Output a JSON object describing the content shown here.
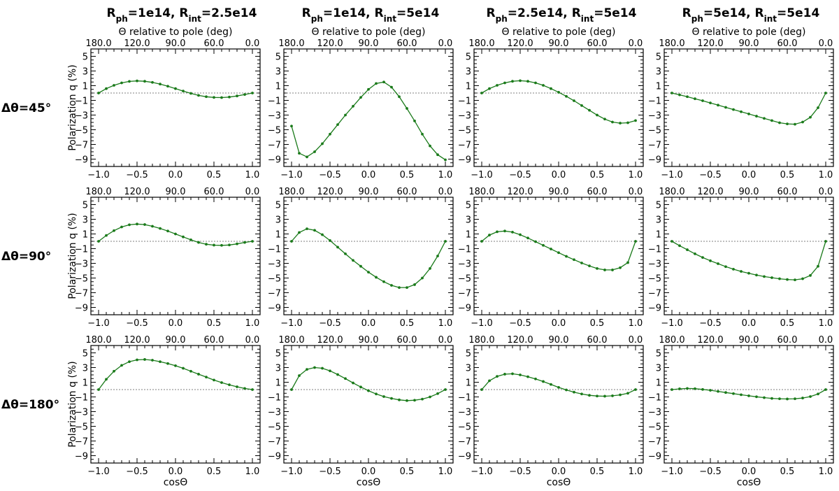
{
  "figure": {
    "column_titles": [
      {
        "a_main": "R",
        "a_sub": "ph",
        "a_val": "=1e14, ",
        "b_main": "R",
        "b_sub": "int",
        "b_val": "=2.5e14"
      },
      {
        "a_main": "R",
        "a_sub": "ph",
        "a_val": "=1e14, ",
        "b_main": "R",
        "b_sub": "int",
        "b_val": "=5e14"
      },
      {
        "a_main": "R",
        "a_sub": "ph",
        "a_val": "=2.5e14, ",
        "b_main": "R",
        "b_sub": "int",
        "b_val": "=5e14"
      },
      {
        "a_main": "R",
        "a_sub": "ph",
        "a_val": "=5e14, ",
        "b_main": "R",
        "b_sub": "int",
        "b_val": "=5e14"
      }
    ],
    "row_labels": [
      "Δθ=45°",
      "Δθ=90°",
      "Δθ=180°"
    ],
    "ylabel": "Polarization q (%)",
    "xlabel": "cosΘ",
    "top_xlabel": "Θ relative to pole (deg)",
    "line_color": "#1a7a1a",
    "zero_line_color": "#555555"
  },
  "chart_data": {
    "type": "line",
    "x": [
      -1.0,
      -0.9,
      -0.8,
      -0.7,
      -0.6,
      -0.5,
      -0.4,
      -0.3,
      -0.2,
      -0.1,
      0.0,
      0.1,
      0.2,
      0.3,
      0.4,
      0.5,
      0.6,
      0.7,
      0.8,
      0.9,
      1.0
    ],
    "xlim": [
      -1.1,
      1.1
    ],
    "ylim": [
      -10,
      6
    ],
    "x_ticks": [
      -1.0,
      -0.5,
      0.0,
      0.5,
      1.0
    ],
    "x_tick_labels": [
      "−1.0",
      "−0.5",
      "0.0",
      "0.5",
      "1.0"
    ],
    "y_ticks": [
      5,
      3,
      1,
      -1,
      -3,
      -5,
      -7,
      -9
    ],
    "y_tick_labels": [
      "5",
      "3",
      "1",
      "−1",
      "−3",
      "−5",
      "−7",
      "−9"
    ],
    "top_ticks_cos": [
      -1.0,
      -0.5,
      0.0,
      0.5,
      1.0
    ],
    "top_tick_labels": [
      "180.0",
      "120.0",
      "90.0",
      "60.0",
      "0.0"
    ],
    "panels": [
      [
        {
          "y": [
            0.0,
            0.6,
            1.05,
            1.38,
            1.58,
            1.65,
            1.6,
            1.45,
            1.22,
            0.93,
            0.6,
            0.27,
            -0.05,
            -0.32,
            -0.5,
            -0.6,
            -0.62,
            -0.55,
            -0.4,
            -0.2,
            0.0
          ]
        },
        {
          "y": [
            -4.5,
            -8.2,
            -8.7,
            -8.0,
            -6.9,
            -5.6,
            -4.3,
            -3.0,
            -1.8,
            -0.6,
            0.5,
            1.3,
            1.5,
            0.8,
            -0.5,
            -2.1,
            -3.8,
            -5.6,
            -7.2,
            -8.4,
            -9.1
          ]
        },
        {
          "y": [
            0.0,
            0.6,
            1.05,
            1.38,
            1.6,
            1.68,
            1.6,
            1.38,
            1.05,
            0.6,
            0.1,
            -0.45,
            -1.05,
            -1.7,
            -2.35,
            -3.0,
            -3.55,
            -3.95,
            -4.1,
            -4.05,
            -3.75
          ]
        },
        {
          "y": [
            0.0,
            -0.25,
            -0.5,
            -0.78,
            -1.05,
            -1.35,
            -1.65,
            -1.95,
            -2.25,
            -2.55,
            -2.85,
            -3.15,
            -3.45,
            -3.75,
            -4.05,
            -4.2,
            -4.25,
            -3.95,
            -3.3,
            -2.0,
            0.0
          ]
        }
      ],
      [
        {
          "y": [
            0.0,
            0.8,
            1.45,
            1.95,
            2.25,
            2.35,
            2.28,
            2.05,
            1.75,
            1.4,
            1.0,
            0.6,
            0.2,
            -0.15,
            -0.4,
            -0.52,
            -0.55,
            -0.5,
            -0.35,
            -0.15,
            0.0
          ]
        },
        {
          "y": [
            0.0,
            1.2,
            1.7,
            1.5,
            0.9,
            0.1,
            -0.8,
            -1.7,
            -2.6,
            -3.4,
            -4.2,
            -4.9,
            -5.5,
            -6.0,
            -6.3,
            -6.3,
            -5.9,
            -5.0,
            -3.7,
            -2.0,
            0.0
          ]
        },
        {
          "y": [
            0.0,
            0.85,
            1.3,
            1.4,
            1.25,
            0.9,
            0.45,
            -0.05,
            -0.55,
            -1.05,
            -1.55,
            -2.05,
            -2.5,
            -2.95,
            -3.35,
            -3.7,
            -3.9,
            -3.9,
            -3.6,
            -2.9,
            0.0
          ]
        },
        {
          "y": [
            0.0,
            -0.6,
            -1.15,
            -1.7,
            -2.2,
            -2.65,
            -3.05,
            -3.45,
            -3.8,
            -4.1,
            -4.35,
            -4.6,
            -4.8,
            -4.95,
            -5.1,
            -5.2,
            -5.25,
            -5.1,
            -4.65,
            -3.4,
            0.0
          ]
        }
      ],
      [
        {
          "y": [
            0.0,
            1.4,
            2.5,
            3.3,
            3.8,
            4.05,
            4.1,
            4.0,
            3.8,
            3.55,
            3.25,
            2.9,
            2.5,
            2.1,
            1.7,
            1.3,
            0.95,
            0.65,
            0.38,
            0.15,
            0.0
          ]
        },
        {
          "y": [
            0.0,
            1.9,
            2.75,
            3.0,
            2.9,
            2.55,
            2.05,
            1.5,
            0.9,
            0.35,
            -0.15,
            -0.6,
            -0.95,
            -1.2,
            -1.4,
            -1.5,
            -1.45,
            -1.3,
            -1.0,
            -0.55,
            0.0
          ]
        },
        {
          "y": [
            0.0,
            1.2,
            1.8,
            2.1,
            2.15,
            2.0,
            1.75,
            1.45,
            1.1,
            0.7,
            0.3,
            -0.05,
            -0.35,
            -0.6,
            -0.78,
            -0.88,
            -0.9,
            -0.85,
            -0.72,
            -0.5,
            0.0
          ]
        },
        {
          "y": [
            0.0,
            0.1,
            0.15,
            0.12,
            0.02,
            -0.1,
            -0.25,
            -0.4,
            -0.55,
            -0.7,
            -0.85,
            -0.98,
            -1.1,
            -1.2,
            -1.25,
            -1.28,
            -1.25,
            -1.15,
            -0.95,
            -0.6,
            0.0
          ]
        }
      ]
    ]
  }
}
